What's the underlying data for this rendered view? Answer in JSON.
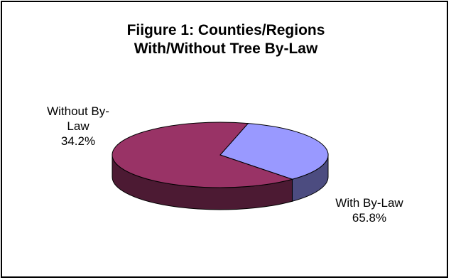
{
  "chart_data": {
    "type": "pie",
    "title_lines": [
      "Fiigure 1: Counties/Regions",
      "With/Without Tree By-Law"
    ],
    "slices": [
      {
        "name_lines": [
          "Without By-",
          "Law"
        ],
        "value": 34.2,
        "label_pct": "34.2%",
        "color": "#9999ff",
        "side_color": "#4c4c80"
      },
      {
        "name_lines": [
          "With By-Law"
        ],
        "value": 65.8,
        "label_pct": "65.8%",
        "color": "#993366",
        "side_color": "#4c1a33"
      }
    ],
    "style": "3d",
    "legend": "none"
  }
}
